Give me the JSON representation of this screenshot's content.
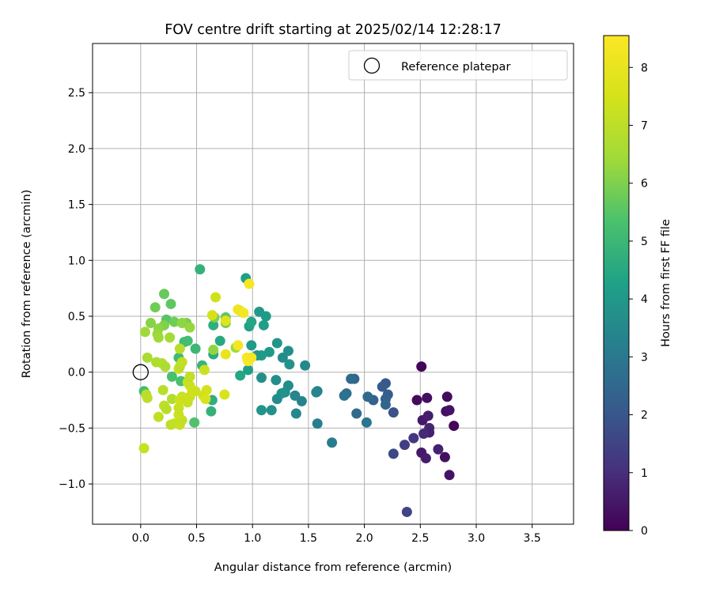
{
  "chart_data": {
    "type": "scatter",
    "title": "FOV centre drift starting at 2025/02/14 12:28:17",
    "xlabel": "Angular distance from reference (arcmin)",
    "ylabel": "Rotation from reference (arcmin)",
    "xlim": [
      -0.43,
      3.87
    ],
    "ylim": [
      -1.36,
      2.94
    ],
    "xticks": [
      0.0,
      0.5,
      1.0,
      1.5,
      2.0,
      2.5,
      3.0,
      3.5
    ],
    "xtick_labels": [
      "0.0",
      "0.5",
      "1.0",
      "1.5",
      "2.0",
      "2.5",
      "3.0",
      "3.5"
    ],
    "yticks": [
      -1.0,
      -0.5,
      0.0,
      0.5,
      1.0,
      1.5,
      2.0,
      2.5
    ],
    "ytick_labels": [
      "−1.0",
      "−0.5",
      "0.0",
      "0.5",
      "1.0",
      "1.5",
      "2.0",
      "2.5"
    ],
    "grid": true,
    "legend": {
      "placement": "top-right",
      "entries": [
        "Reference platepar"
      ]
    },
    "reference": {
      "x": 0.0,
      "y": 0.0
    },
    "colorbar": {
      "label": "Hours from first FF file",
      "colormap": "viridis",
      "range": [
        0,
        8.55
      ],
      "ticks": [
        0,
        1,
        2,
        3,
        4,
        5,
        6,
        7,
        8
      ],
      "tick_labels": [
        "0",
        "1",
        "2",
        "3",
        "4",
        "5",
        "6",
        "7",
        "8"
      ]
    },
    "points": [
      {
        "x": 2.51,
        "y": 0.05,
        "h": 0.1
      },
      {
        "x": 2.47,
        "y": -0.25,
        "h": 0.2
      },
      {
        "x": 2.56,
        "y": -0.23,
        "h": 0.3
      },
      {
        "x": 2.74,
        "y": -0.22,
        "h": 0.2
      },
      {
        "x": 2.73,
        "y": -0.35,
        "h": 0.3
      },
      {
        "x": 2.76,
        "y": -0.34,
        "h": 0.4
      },
      {
        "x": 2.8,
        "y": -0.48,
        "h": 0.1
      },
      {
        "x": 2.52,
        "y": -0.43,
        "h": 0.5
      },
      {
        "x": 2.57,
        "y": -0.39,
        "h": 0.6
      },
      {
        "x": 2.58,
        "y": -0.5,
        "h": 0.8
      },
      {
        "x": 2.58,
        "y": -0.54,
        "h": 0.7
      },
      {
        "x": 2.53,
        "y": -0.55,
        "h": 0.9
      },
      {
        "x": 2.51,
        "y": -0.72,
        "h": 0.5
      },
      {
        "x": 2.55,
        "y": -0.77,
        "h": 0.6
      },
      {
        "x": 2.66,
        "y": -0.69,
        "h": 0.7
      },
      {
        "x": 2.72,
        "y": -0.76,
        "h": 0.3
      },
      {
        "x": 2.76,
        "y": -0.92,
        "h": 0.4
      },
      {
        "x": 2.44,
        "y": -0.59,
        "h": 1.2
      },
      {
        "x": 2.36,
        "y": -0.65,
        "h": 1.4
      },
      {
        "x": 2.26,
        "y": -0.73,
        "h": 1.6
      },
      {
        "x": 2.38,
        "y": -1.25,
        "h": 1.5
      },
      {
        "x": 2.26,
        "y": -0.36,
        "h": 1.9
      },
      {
        "x": 2.19,
        "y": -0.1,
        "h": 2.0
      },
      {
        "x": 2.16,
        "y": -0.13,
        "h": 2.1
      },
      {
        "x": 2.21,
        "y": -0.2,
        "h": 2.2
      },
      {
        "x": 2.19,
        "y": -0.24,
        "h": 2.3
      },
      {
        "x": 2.19,
        "y": -0.29,
        "h": 2.4
      },
      {
        "x": 2.08,
        "y": -0.25,
        "h": 2.3
      },
      {
        "x": 2.03,
        "y": -0.22,
        "h": 2.5
      },
      {
        "x": 1.91,
        "y": -0.06,
        "h": 2.4
      },
      {
        "x": 1.88,
        "y": -0.06,
        "h": 2.6
      },
      {
        "x": 1.84,
        "y": -0.19,
        "h": 2.7
      },
      {
        "x": 1.82,
        "y": -0.21,
        "h": 2.8
      },
      {
        "x": 1.93,
        "y": -0.37,
        "h": 2.6
      },
      {
        "x": 2.02,
        "y": -0.45,
        "h": 2.9
      },
      {
        "x": 1.71,
        "y": -0.63,
        "h": 3.1
      },
      {
        "x": 1.58,
        "y": -0.46,
        "h": 3.2
      },
      {
        "x": 1.58,
        "y": -0.17,
        "h": 3.3
      },
      {
        "x": 1.57,
        "y": -0.18,
        "h": 3.4
      },
      {
        "x": 1.47,
        "y": 0.06,
        "h": 3.5
      },
      {
        "x": 1.44,
        "y": -0.26,
        "h": 3.3
      },
      {
        "x": 1.38,
        "y": -0.21,
        "h": 3.4
      },
      {
        "x": 1.39,
        "y": -0.37,
        "h": 3.5
      },
      {
        "x": 1.32,
        "y": -0.12,
        "h": 3.6
      },
      {
        "x": 1.29,
        "y": -0.18,
        "h": 3.7
      },
      {
        "x": 1.26,
        "y": -0.19,
        "h": 3.8
      },
      {
        "x": 1.22,
        "y": -0.24,
        "h": 3.6
      },
      {
        "x": 1.21,
        "y": -0.07,
        "h": 3.7
      },
      {
        "x": 1.17,
        "y": -0.34,
        "h": 3.8
      },
      {
        "x": 1.08,
        "y": -0.34,
        "h": 3.9
      },
      {
        "x": 1.08,
        "y": -0.05,
        "h": 3.7
      },
      {
        "x": 1.33,
        "y": 0.07,
        "h": 3.8
      },
      {
        "x": 1.27,
        "y": 0.13,
        "h": 3.6
      },
      {
        "x": 1.32,
        "y": 0.19,
        "h": 3.7
      },
      {
        "x": 1.22,
        "y": 0.26,
        "h": 3.9
      },
      {
        "x": 1.15,
        "y": 0.18,
        "h": 4.0
      },
      {
        "x": 1.08,
        "y": 0.15,
        "h": 4.1
      },
      {
        "x": 1.04,
        "y": 0.15,
        "h": 4.0
      },
      {
        "x": 0.99,
        "y": 0.24,
        "h": 4.1
      },
      {
        "x": 1.1,
        "y": 0.42,
        "h": 4.2
      },
      {
        "x": 1.12,
        "y": 0.5,
        "h": 4.1
      },
      {
        "x": 1.06,
        "y": 0.54,
        "h": 4.0
      },
      {
        "x": 0.97,
        "y": 0.41,
        "h": 4.3
      },
      {
        "x": 0.99,
        "y": 0.45,
        "h": 4.4
      },
      {
        "x": 0.94,
        "y": 0.84,
        "h": 4.2
      },
      {
        "x": 0.96,
        "y": 0.02,
        "h": 4.2
      },
      {
        "x": 0.89,
        "y": -0.03,
        "h": 4.4
      },
      {
        "x": 0.71,
        "y": 0.28,
        "h": 4.5
      },
      {
        "x": 0.65,
        "y": 0.16,
        "h": 4.6
      },
      {
        "x": 0.65,
        "y": 0.42,
        "h": 4.7
      },
      {
        "x": 0.64,
        "y": -0.25,
        "h": 4.7
      },
      {
        "x": 0.63,
        "y": -0.35,
        "h": 4.8
      },
      {
        "x": 0.53,
        "y": 0.92,
        "h": 4.8
      },
      {
        "x": 0.55,
        "y": 0.06,
        "h": 4.9
      },
      {
        "x": 0.49,
        "y": 0.21,
        "h": 5.0
      },
      {
        "x": 0.34,
        "y": 0.13,
        "h": 5.1
      },
      {
        "x": 0.39,
        "y": 0.27,
        "h": 5.1
      },
      {
        "x": 0.42,
        "y": 0.28,
        "h": 5.2
      },
      {
        "x": 0.28,
        "y": -0.04,
        "h": 5.3
      },
      {
        "x": 0.36,
        "y": -0.08,
        "h": 5.3
      },
      {
        "x": 0.48,
        "y": -0.45,
        "h": 5.4
      },
      {
        "x": 0.21,
        "y": 0.7,
        "h": 5.7
      },
      {
        "x": 0.27,
        "y": 0.61,
        "h": 5.6
      },
      {
        "x": 0.13,
        "y": 0.58,
        "h": 5.8
      },
      {
        "x": 0.23,
        "y": 0.47,
        "h": 5.5
      },
      {
        "x": 0.3,
        "y": 0.45,
        "h": 5.8
      },
      {
        "x": 0.41,
        "y": 0.44,
        "h": 5.9
      },
      {
        "x": 0.21,
        "y": 0.42,
        "h": 6.0
      },
      {
        "x": 0.09,
        "y": 0.44,
        "h": 6.1
      },
      {
        "x": 0.16,
        "y": 0.39,
        "h": 6.2
      },
      {
        "x": 0.15,
        "y": 0.34,
        "h": 6.3
      },
      {
        "x": 0.16,
        "y": 0.31,
        "h": 6.4
      },
      {
        "x": 0.26,
        "y": 0.31,
        "h": 6.5
      },
      {
        "x": 0.04,
        "y": 0.36,
        "h": 6.4
      },
      {
        "x": 0.44,
        "y": 0.4,
        "h": 6.3
      },
      {
        "x": 0.37,
        "y": 0.44,
        "h": 6.2
      },
      {
        "x": 0.66,
        "y": 0.49,
        "h": 6.0
      },
      {
        "x": 0.76,
        "y": 0.49,
        "h": 5.6
      },
      {
        "x": 0.76,
        "y": 0.44,
        "h": 5.9
      },
      {
        "x": 0.65,
        "y": 0.2,
        "h": 6.2
      },
      {
        "x": 0.85,
        "y": 0.22,
        "h": 6.4
      },
      {
        "x": 0.03,
        "y": -0.17,
        "h": 5.2
      },
      {
        "x": 0.06,
        "y": 0.13,
        "h": 6.6
      },
      {
        "x": 0.14,
        "y": 0.09,
        "h": 6.7
      },
      {
        "x": 0.19,
        "y": 0.08,
        "h": 6.8
      },
      {
        "x": 0.22,
        "y": 0.05,
        "h": 6.7
      },
      {
        "x": 0.2,
        "y": -0.16,
        "h": 6.9
      },
      {
        "x": 0.28,
        "y": -0.24,
        "h": 6.8
      },
      {
        "x": 0.21,
        "y": -0.3,
        "h": 7.0
      },
      {
        "x": 0.23,
        "y": -0.33,
        "h": 6.9
      },
      {
        "x": 0.16,
        "y": -0.4,
        "h": 7.1
      },
      {
        "x": 0.27,
        "y": -0.47,
        "h": 7.0
      },
      {
        "x": 0.3,
        "y": -0.46,
        "h": 7.1
      },
      {
        "x": 0.35,
        "y": -0.47,
        "h": 7.2
      },
      {
        "x": 0.37,
        "y": -0.43,
        "h": 7.1
      },
      {
        "x": 0.34,
        "y": -0.38,
        "h": 7.3
      },
      {
        "x": 0.34,
        "y": -0.32,
        "h": 7.2
      },
      {
        "x": 0.35,
        "y": -0.25,
        "h": 7.4
      },
      {
        "x": 0.37,
        "y": -0.22,
        "h": 7.3
      },
      {
        "x": 0.42,
        "y": -0.27,
        "h": 7.2
      },
      {
        "x": 0.44,
        "y": -0.22,
        "h": 7.3
      },
      {
        "x": 0.46,
        "y": -0.18,
        "h": 7.4
      },
      {
        "x": 0.49,
        "y": -0.17,
        "h": 7.3
      },
      {
        "x": 0.44,
        "y": -0.12,
        "h": 7.4
      },
      {
        "x": 0.42,
        "y": -0.09,
        "h": 7.2
      },
      {
        "x": 0.44,
        "y": -0.04,
        "h": 7.1
      },
      {
        "x": 0.34,
        "y": 0.03,
        "h": 7.2
      },
      {
        "x": 0.35,
        "y": 0.05,
        "h": 7.0
      },
      {
        "x": 0.37,
        "y": 0.09,
        "h": 7.1
      },
      {
        "x": 0.35,
        "y": 0.21,
        "h": 6.9
      },
      {
        "x": 0.05,
        "y": -0.2,
        "h": 6.9
      },
      {
        "x": 0.06,
        "y": -0.23,
        "h": 7.0
      },
      {
        "x": 0.03,
        "y": -0.68,
        "h": 7.2
      },
      {
        "x": 0.57,
        "y": 0.02,
        "h": 7.3
      },
      {
        "x": 0.59,
        "y": -0.16,
        "h": 7.5
      },
      {
        "x": 0.56,
        "y": -0.21,
        "h": 7.4
      },
      {
        "x": 0.58,
        "y": -0.24,
        "h": 7.6
      },
      {
        "x": 0.75,
        "y": -0.2,
        "h": 7.6
      },
      {
        "x": 0.64,
        "y": 0.51,
        "h": 7.5
      },
      {
        "x": 0.67,
        "y": 0.67,
        "h": 7.4
      },
      {
        "x": 0.76,
        "y": 0.46,
        "h": 7.8
      },
      {
        "x": 0.76,
        "y": 0.16,
        "h": 8.0
      },
      {
        "x": 0.87,
        "y": 0.56,
        "h": 8.2
      },
      {
        "x": 0.89,
        "y": 0.55,
        "h": 8.1
      },
      {
        "x": 0.92,
        "y": 0.53,
        "h": 8.3
      },
      {
        "x": 0.87,
        "y": 0.24,
        "h": 8.3
      },
      {
        "x": 0.95,
        "y": 0.13,
        "h": 8.4
      },
      {
        "x": 0.96,
        "y": 0.1,
        "h": 8.5
      },
      {
        "x": 0.99,
        "y": 0.13,
        "h": 8.3
      },
      {
        "x": 0.97,
        "y": 0.79,
        "h": 8.4
      }
    ]
  }
}
